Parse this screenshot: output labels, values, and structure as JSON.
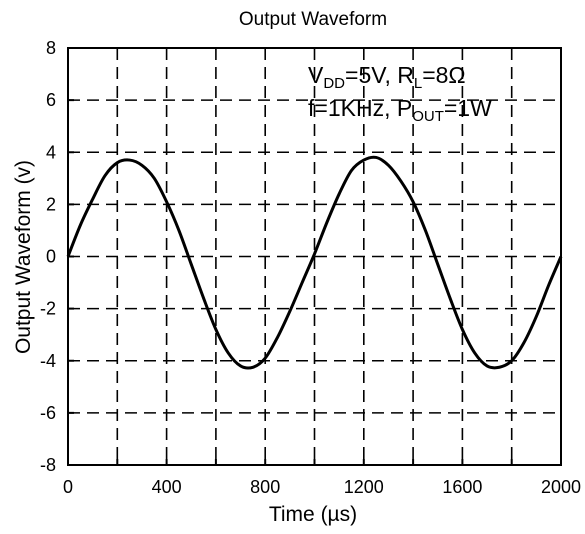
{
  "chart_data": {
    "type": "line",
    "title": "Output Waveform",
    "xlabel": "Time (µs)",
    "ylabel": "Output Waveform (v)",
    "xlim": [
      0,
      2000
    ],
    "ylim": [
      -8,
      8
    ],
    "x_ticks": [
      0,
      200,
      400,
      600,
      800,
      1000,
      1200,
      1400,
      1600,
      1800,
      2000
    ],
    "x_tick_labels": [
      "0",
      "400",
      "800",
      "1200",
      "1600",
      "2000"
    ],
    "x_tick_label_values": [
      0,
      400,
      800,
      1200,
      1600,
      2000
    ],
    "y_ticks": [
      -8,
      -6,
      -4,
      -2,
      0,
      2,
      4,
      6,
      8
    ],
    "y_tick_labels": [
      "-8",
      "-6",
      "-4",
      "-2",
      "0",
      "2",
      "4",
      "6",
      "8"
    ],
    "grid": true,
    "annotations": {
      "line1": {
        "v": "V",
        "dd": "DD",
        "eq1": "=5V, R",
        "l": "L",
        "eq2": "=8Ω"
      },
      "line2": {
        "f": "f=1KHz, P",
        "out": "OUT",
        "eq": "=1W"
      }
    },
    "series": [
      {
        "x": [
          0,
          50,
          100,
          150,
          200,
          250,
          300,
          350,
          400,
          450,
          500,
          550,
          600,
          650,
          700,
          750,
          800,
          850,
          900,
          950,
          1000,
          1050,
          1100,
          1150,
          1200,
          1250,
          1300,
          1350,
          1400,
          1450,
          1500,
          1550,
          1600,
          1650,
          1700,
          1750,
          1800,
          1850,
          1900,
          1950,
          2000
        ],
        "y": [
          0.0,
          1.2,
          2.2,
          3.1,
          3.6,
          3.7,
          3.5,
          3.0,
          2.1,
          1.0,
          -0.3,
          -1.6,
          -2.8,
          -3.7,
          -4.2,
          -4.25,
          -3.9,
          -3.1,
          -2.1,
          -1.0,
          0.1,
          1.3,
          2.4,
          3.3,
          3.7,
          3.8,
          3.5,
          2.9,
          2.1,
          1.0,
          -0.3,
          -1.6,
          -2.8,
          -3.7,
          -4.2,
          -4.25,
          -4.0,
          -3.3,
          -2.3,
          -1.1,
          0.0
        ]
      }
    ]
  }
}
